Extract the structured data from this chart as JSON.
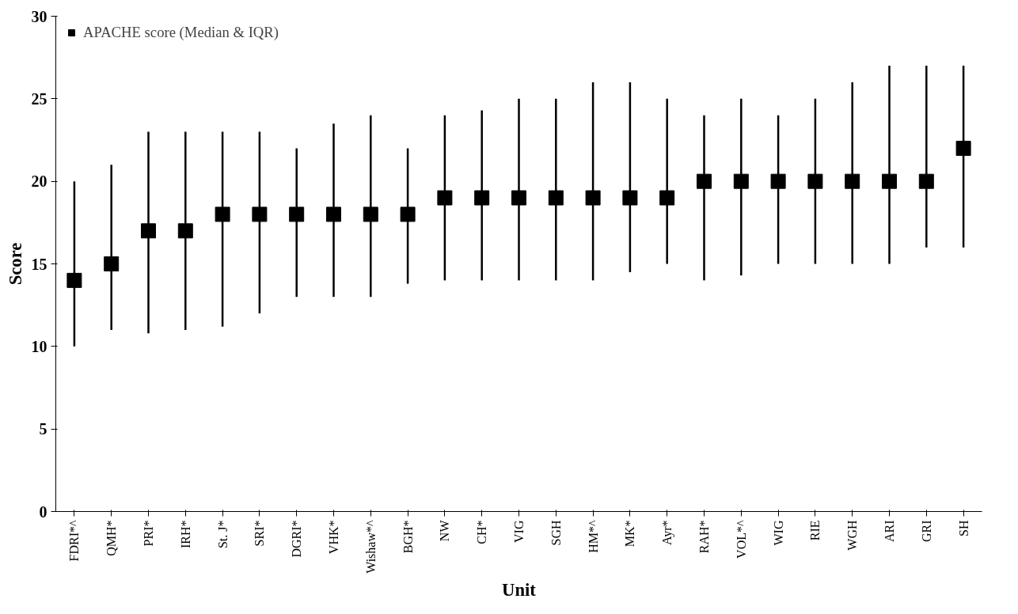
{
  "chart_data": {
    "type": "scatter",
    "xlabel": "Unit",
    "ylabel": "Score",
    "categories": [
      "FDRI*^",
      "QMH*",
      "PRI*",
      "IRH*",
      "St. J*",
      "SRI*",
      "DGRI*",
      "VHK*",
      "Wishaw*^",
      "BGH*",
      "NW",
      "CH*",
      "VIG",
      "SGH",
      "HM*^",
      "MK*",
      "Ayr*",
      "RAH*",
      "VOL*^",
      "WIG",
      "RIE",
      "WGH",
      "ARI",
      "GRI",
      "SH"
    ],
    "series": [
      {
        "name": "APACHE score (Median & IQR)",
        "color": "#000000",
        "values": [
          14,
          15,
          17,
          17,
          18,
          18,
          18,
          18,
          18,
          18,
          19,
          19,
          19,
          19,
          19,
          19,
          19,
          20,
          20,
          20,
          20,
          20,
          20,
          20,
          22
        ],
        "errors": [
          [
            10,
            20
          ],
          [
            11,
            21
          ],
          [
            10.8,
            23
          ],
          [
            11,
            23
          ],
          [
            11.2,
            23
          ],
          [
            12,
            23
          ],
          [
            13,
            22
          ],
          [
            13,
            23.5
          ],
          [
            13,
            24
          ],
          [
            13.8,
            22
          ],
          [
            14,
            24
          ],
          [
            14,
            24.3
          ],
          [
            14,
            25
          ],
          [
            14,
            25
          ],
          [
            14,
            26
          ],
          [
            14.5,
            26
          ],
          [
            15,
            25
          ],
          [
            14,
            24
          ],
          [
            14.3,
            25
          ],
          [
            15,
            24
          ],
          [
            15,
            25
          ],
          [
            15,
            26
          ],
          [
            15,
            27
          ],
          [
            16,
            27
          ],
          [
            16,
            27
          ]
        ]
      }
    ],
    "ylim": [
      0,
      30
    ],
    "yticks": [
      0,
      5,
      10,
      15,
      20,
      25,
      30
    ],
    "marker": "square",
    "legend": "top left",
    "grid": false
  }
}
